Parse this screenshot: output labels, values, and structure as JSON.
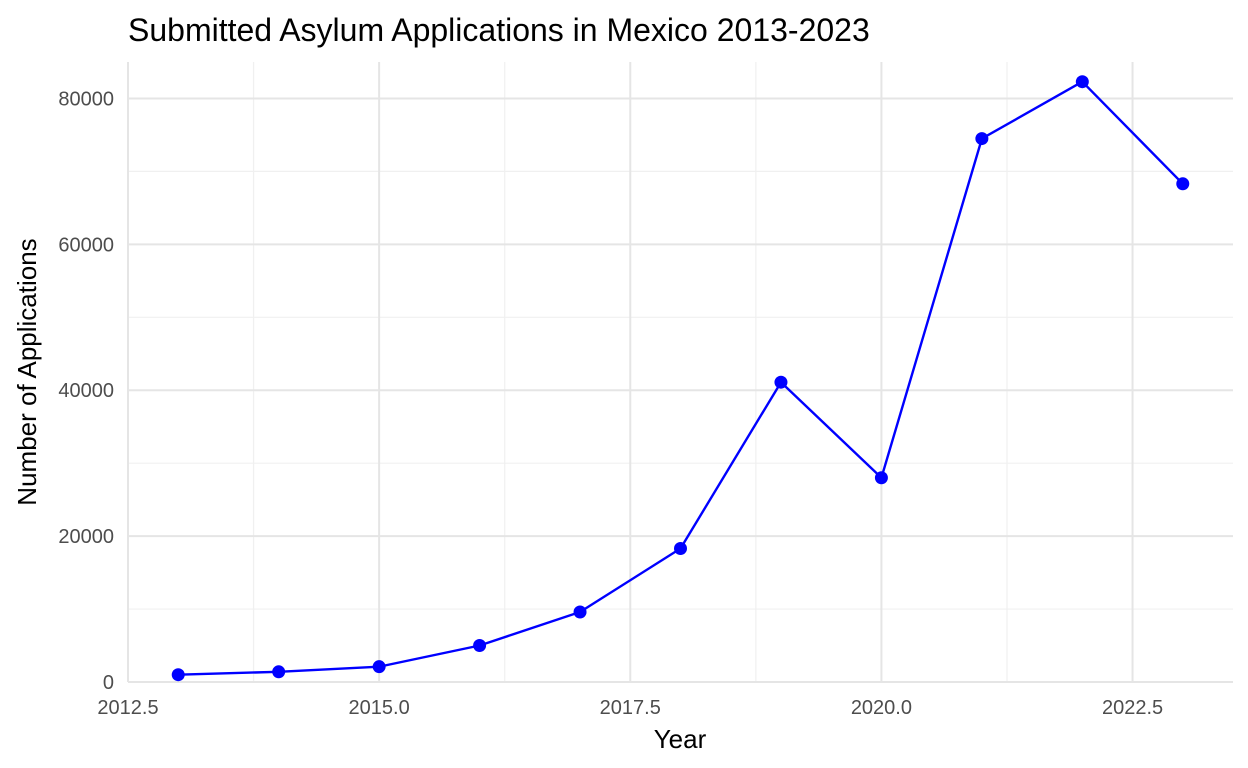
{
  "chart_data": {
    "type": "line",
    "title": "Submitted Asylum Applications in Mexico 2013-2023",
    "xlabel": "Year",
    "ylabel": "Number of Applications",
    "xlim": [
      2012.5,
      2023.5
    ],
    "ylim": [
      0,
      85000
    ],
    "x_ticks": [
      2012.5,
      2015.0,
      2017.5,
      2020.0,
      2022.5
    ],
    "x_tick_labels": [
      "2012.5",
      "2015.0",
      "2017.5",
      "2020.0",
      "2022.5"
    ],
    "y_ticks": [
      0,
      20000,
      40000,
      60000,
      80000
    ],
    "y_tick_labels": [
      "0",
      "20000",
      "40000",
      "60000",
      "80000"
    ],
    "grid": true,
    "legend": "none",
    "series": [
      {
        "color": "#0000ff",
        "x": [
          2013,
          2014,
          2015,
          2016,
          2017,
          2018,
          2019,
          2020,
          2021,
          2022,
          2023
        ],
        "y": [
          1000,
          1400,
          2100,
          5000,
          9600,
          18300,
          41100,
          28000,
          74500,
          82300,
          68300
        ]
      }
    ]
  }
}
